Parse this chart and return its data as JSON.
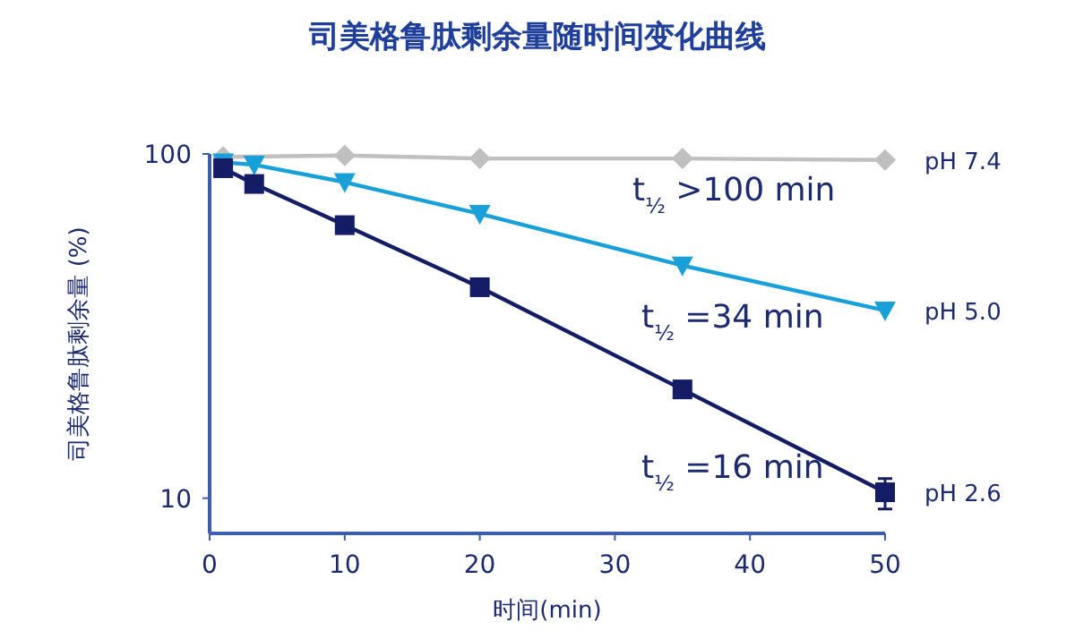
{
  "chart_data": {
    "type": "line",
    "title": "司美格鲁肽剩余量随时间变化曲线",
    "xlabel": "时间(min)",
    "ylabel": "司美格鲁肽剩余量 (%)",
    "log": "y",
    "grid": false,
    "xlim": [
      0,
      50
    ],
    "xticks": [
      0,
      10,
      20,
      30,
      40,
      50
    ],
    "ylim": [
      7.9,
      100
    ],
    "yticks": [
      10,
      100
    ],
    "series": [
      {
        "name": "pH 7.4",
        "color": "#c0c0c0",
        "marker": "diamond",
        "x": [
          1,
          10,
          20,
          35,
          50
        ],
        "values": [
          98,
          99,
          97,
          97,
          96
        ]
      },
      {
        "name": "pH 5.0",
        "color": "#1aa0d8",
        "marker": "triangle",
        "x": [
          1,
          3.3,
          10,
          20,
          35,
          50
        ],
        "values": [
          94.5,
          93,
          82.8,
          67,
          47.4,
          35.1
        ]
      },
      {
        "name": "pH 2.6",
        "color": "#141c66",
        "marker": "square",
        "x": [
          1,
          3.3,
          10,
          20,
          35,
          50
        ],
        "values": [
          90.9,
          81.8,
          62.1,
          41,
          20.7,
          10.4
        ],
        "errors": [
          null,
          null,
          null,
          null,
          null,
          [
            9.3,
            11.4
          ]
        ]
      }
    ],
    "annotations": [
      "t$_{½}$ >100 min",
      "t$_{½}$ =34 min",
      "t$_{½}$ =16 min"
    ]
  }
}
